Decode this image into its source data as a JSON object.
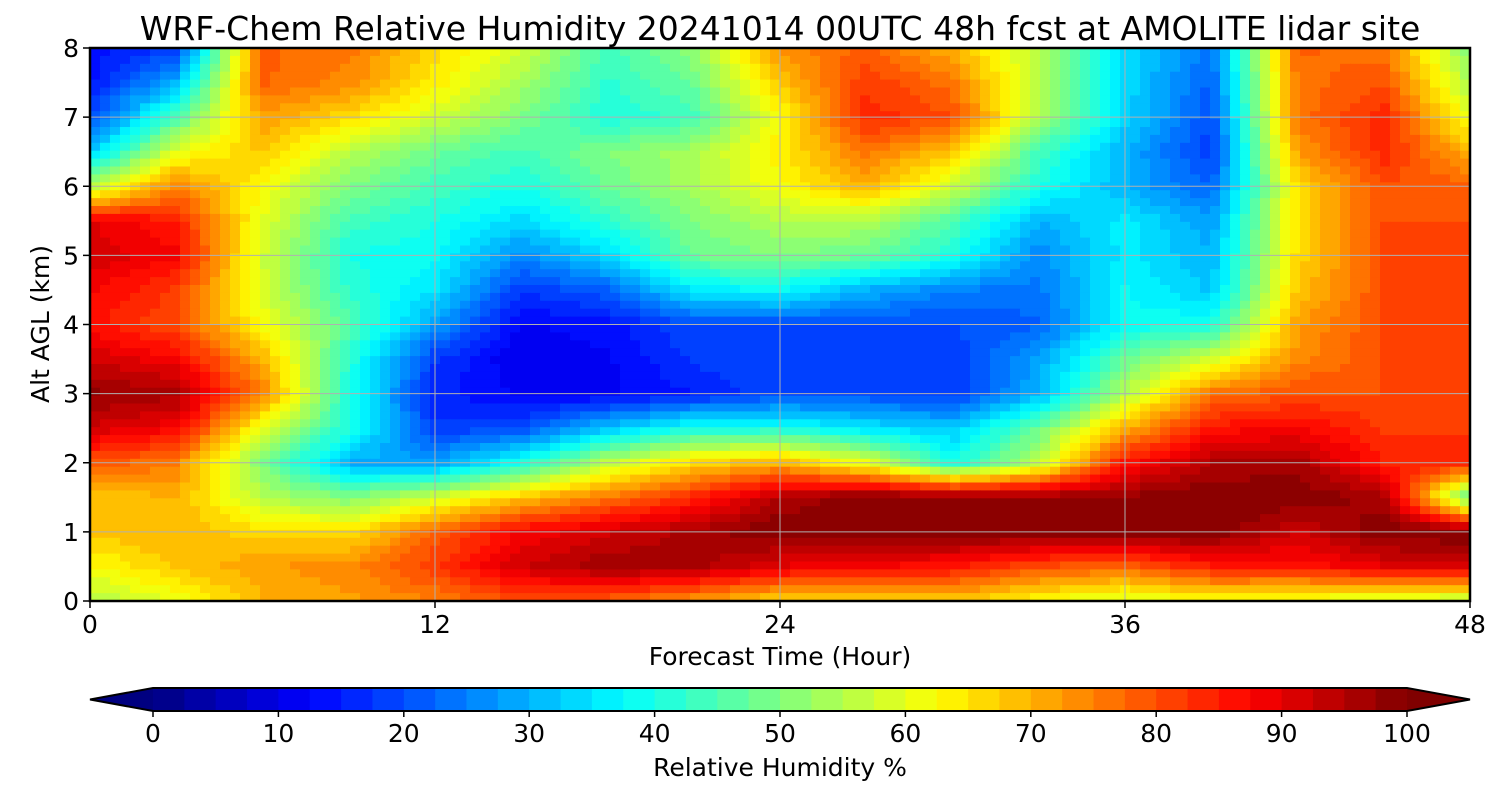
{
  "chart_data": {
    "type": "heatmap",
    "title": "WRF-Chem Relative Humidity 20241014 00UTC 48h fcst at AMOLITE lidar site",
    "xlabel": "Forecast Time (Hour)",
    "ylabel": "Alt AGL (km)",
    "xlim": [
      0,
      48
    ],
    "ylim": [
      0,
      8
    ],
    "xticks": [
      "0",
      "12",
      "24",
      "36",
      "48"
    ],
    "yticks": [
      "0",
      "1",
      "2",
      "3",
      "4",
      "5",
      "6",
      "7",
      "8"
    ],
    "grid": true,
    "colorbar": {
      "label": "Relative Humidity %",
      "colormap": "jet",
      "range": [
        0,
        100
      ],
      "ticks": [
        "0",
        "10",
        "20",
        "30",
        "40",
        "50",
        "60",
        "70",
        "80",
        "90",
        "100"
      ],
      "extend": "both",
      "orientation": "horizontal"
    },
    "x": [
      0,
      3,
      6,
      9,
      12,
      15,
      18,
      21,
      24,
      27,
      30,
      33,
      36,
      39,
      42,
      45,
      48
    ],
    "y": [
      0,
      0.5,
      1,
      1.5,
      2,
      2.5,
      3,
      3.5,
      4,
      4.5,
      5,
      5.5,
      6,
      6.5,
      7,
      7.5,
      8
    ],
    "z": [
      [
        55,
        60,
        70,
        72,
        75,
        80,
        78,
        72,
        66,
        66,
        68,
        62,
        58,
        62,
        60,
        58,
        55
      ],
      [
        62,
        68,
        72,
        74,
        82,
        92,
        97,
        96,
        90,
        88,
        86,
        80,
        78,
        85,
        86,
        90,
        92
      ],
      [
        68,
        70,
        66,
        65,
        78,
        88,
        92,
        96,
        100,
        100,
        100,
        100,
        100,
        100,
        92,
        100,
        100
      ],
      [
        68,
        70,
        55,
        50,
        58,
        68,
        76,
        84,
        95,
        100,
        98,
        98,
        98,
        100,
        100,
        96,
        45
      ],
      [
        80,
        75,
        50,
        30,
        28,
        40,
        56,
        66,
        70,
        60,
        40,
        56,
        86,
        95,
        96,
        85,
        84
      ],
      [
        92,
        88,
        60,
        40,
        18,
        20,
        32,
        40,
        40,
        35,
        32,
        48,
        70,
        86,
        88,
        82,
        82
      ],
      [
        98,
        96,
        75,
        40,
        16,
        12,
        12,
        15,
        20,
        20,
        18,
        30,
        55,
        76,
        80,
        80,
        80
      ],
      [
        92,
        88,
        70,
        42,
        18,
        10,
        12,
        18,
        20,
        18,
        18,
        28,
        48,
        58,
        74,
        80,
        80
      ],
      [
        86,
        80,
        62,
        46,
        28,
        12,
        14,
        20,
        20,
        20,
        20,
        22,
        38,
        40,
        72,
        80,
        80
      ],
      [
        88,
        82,
        58,
        42,
        35,
        18,
        22,
        36,
        38,
        30,
        25,
        24,
        38,
        32,
        68,
        80,
        80
      ],
      [
        92,
        88,
        58,
        40,
        38,
        26,
        34,
        48,
        50,
        48,
        40,
        26,
        36,
        30,
        66,
        80,
        80
      ],
      [
        90,
        85,
        60,
        44,
        40,
        34,
        42,
        50,
        55,
        55,
        45,
        30,
        36,
        28,
        66,
        80,
        80
      ],
      [
        55,
        75,
        62,
        50,
        44,
        40,
        48,
        54,
        62,
        70,
        58,
        40,
        30,
        22,
        66,
        80,
        78
      ],
      [
        32,
        60,
        68,
        56,
        48,
        44,
        50,
        54,
        64,
        76,
        68,
        44,
        30,
        18,
        72,
        84,
        70
      ],
      [
        20,
        45,
        72,
        66,
        58,
        50,
        40,
        44,
        62,
        84,
        80,
        55,
        34,
        20,
        76,
        84,
        60
      ],
      [
        14,
        30,
        78,
        74,
        64,
        54,
        42,
        48,
        68,
        82,
        76,
        55,
        34,
        22,
        76,
        80,
        54
      ],
      [
        14,
        18,
        78,
        76,
        66,
        58,
        44,
        52,
        74,
        78,
        70,
        55,
        34,
        24,
        78,
        76,
        50
      ]
    ]
  }
}
